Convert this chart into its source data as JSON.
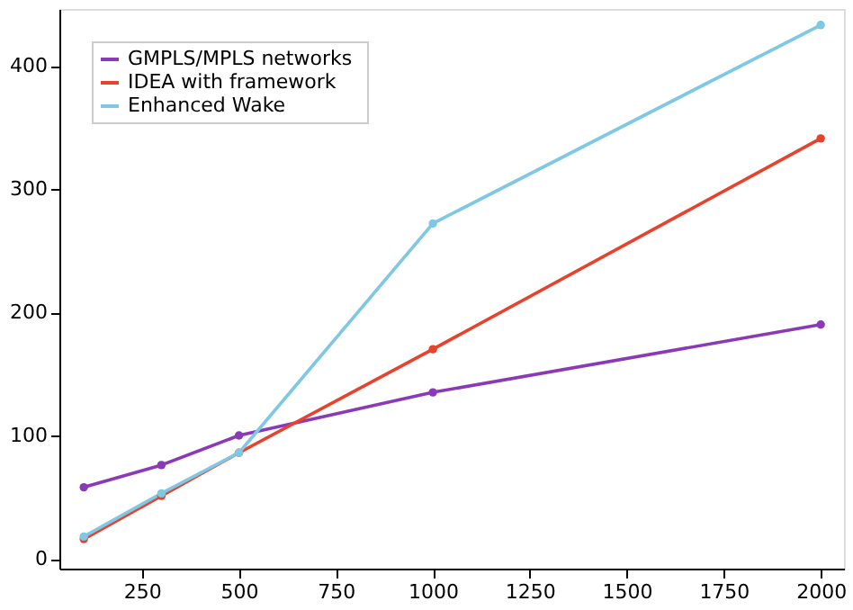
{
  "chart_data": {
    "type": "line",
    "x": [
      100,
      300,
      500,
      1000,
      2000
    ],
    "series": [
      {
        "name": "GMPLS/MPLS  networks",
        "color": "#8a3ab9",
        "values": [
          58,
          76,
          100,
          135,
          190
        ]
      },
      {
        "name": "IDEA with framework",
        "color": "#e8412c",
        "values": [
          16,
          51,
          86,
          170,
          341
        ]
      },
      {
        "name": "Enhanced Wake",
        "color": "#7ec8e3",
        "values": [
          18,
          53,
          86,
          272,
          433
        ]
      }
    ],
    "xlim": [
      37,
      2060
    ],
    "ylim": [
      -8,
      446
    ],
    "xticks": [
      250,
      500,
      750,
      1000,
      1250,
      1500,
      1750,
      2000
    ],
    "yticks": [
      0,
      100,
      200,
      300,
      400
    ],
    "grid": false,
    "legend": "top left",
    "marker": "circle",
    "line_style": "solid"
  }
}
